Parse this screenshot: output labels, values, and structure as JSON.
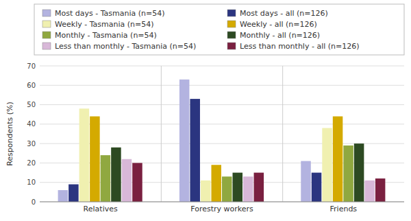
{
  "chart_data": {
    "type": "bar",
    "categories": [
      "Relatives",
      "Forestry workers",
      "Friends"
    ],
    "series": [
      {
        "name": "Most days - Tasmania (n=54)",
        "color": "#b3b3e0",
        "values": [
          6,
          63,
          21
        ]
      },
      {
        "name": "Most days - all (n=126)",
        "color": "#2b3580",
        "values": [
          9,
          53,
          15
        ]
      },
      {
        "name": "Weekly - Tasmania (n=54)",
        "color": "#f0f0b0",
        "values": [
          48,
          11,
          38
        ]
      },
      {
        "name": "Weekly - all (n=126)",
        "color": "#d4aa00",
        "values": [
          44,
          19,
          44
        ]
      },
      {
        "name": "Monthly - Tasmania (n=54)",
        "color": "#90a840",
        "values": [
          24,
          13,
          29
        ]
      },
      {
        "name": "Monthly - all (n=126)",
        "color": "#2d4a22",
        "values": [
          28,
          15,
          30
        ]
      },
      {
        "name": "Less than monthly - Tasmania (n=54)",
        "color": "#d8b8d8",
        "values": [
          22,
          13,
          11
        ]
      },
      {
        "name": "Less than monthly - all (n=126)",
        "color": "#7a2040",
        "values": [
          20,
          15,
          12
        ]
      }
    ],
    "ylabel": "Respondents (%)",
    "ylim": [
      0,
      70
    ],
    "yticks": [
      0,
      10,
      20,
      30,
      40,
      50,
      60,
      70
    ],
    "grid": true,
    "legend": "top"
  }
}
